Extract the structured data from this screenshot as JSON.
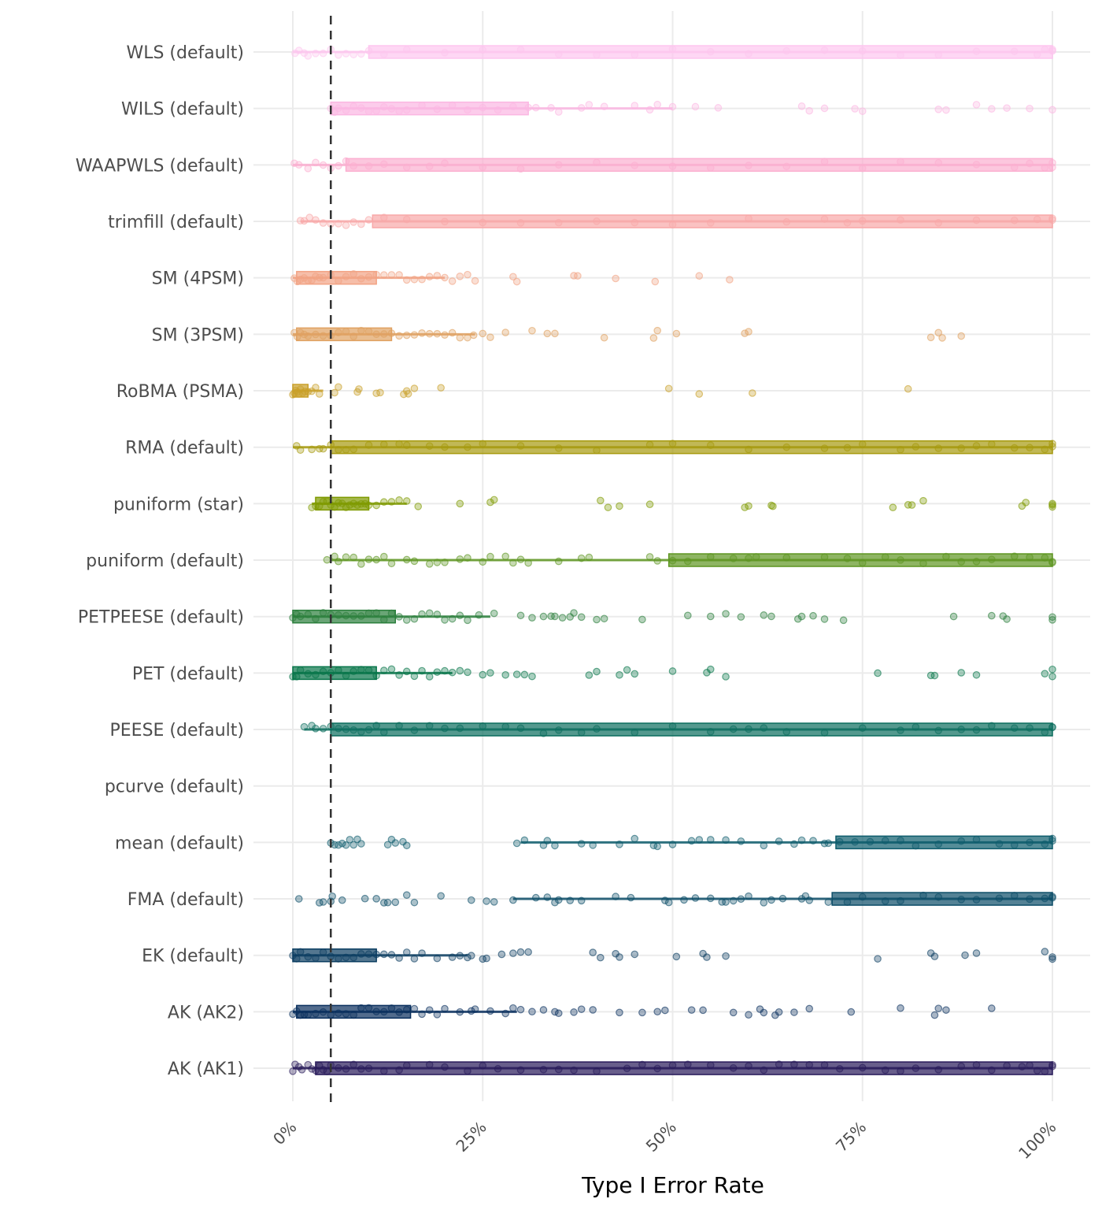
{
  "chart_data": {
    "type": "scatter",
    "subtype": "jittered-points-with-boxplot",
    "title": "",
    "xlabel": "Type I Error Rate",
    "ylabel": "",
    "xlim": [
      0,
      100
    ],
    "x_ticks": [
      0,
      25,
      50,
      75,
      100
    ],
    "x_tick_labels": [
      "0%",
      "25%",
      "50%",
      "75%",
      "100%"
    ],
    "grid": true,
    "legend": "none",
    "reference_line": {
      "x": 5,
      "style": "dashed",
      "color": "#333333"
    },
    "series": [
      {
        "name": "WLS (default)",
        "color": "#FDC6EF",
        "box": {
          "q1": 10,
          "median": 100,
          "q3": 100
        },
        "whisker": [
          0,
          100
        ],
        "points": [
          0.3,
          0.8,
          1.5,
          2,
          3,
          4,
          5,
          6,
          7,
          8,
          9,
          10,
          12,
          15,
          20,
          25,
          30,
          35,
          40,
          45,
          50,
          55,
          60,
          65,
          70,
          75,
          80,
          85,
          90,
          95,
          98,
          99,
          100,
          100,
          100
        ]
      },
      {
        "name": "WILS (default)",
        "color": "#FBB7E2",
        "box": {
          "q1": 5,
          "median": 15,
          "q3": 31
        },
        "whisker": [
          5,
          50
        ],
        "points": [
          5,
          5.5,
          6,
          7,
          8,
          9,
          10,
          11,
          12,
          13,
          14,
          15,
          17,
          19,
          21,
          23,
          25,
          27,
          29,
          31,
          32,
          34,
          35,
          38,
          39,
          41,
          45,
          47,
          48,
          50,
          53,
          56,
          67,
          68,
          70,
          74,
          75,
          85,
          86,
          90,
          92,
          94,
          97,
          100
        ]
      },
      {
        "name": "WAAPWLS (default)",
        "color": "#FBAFD0",
        "box": {
          "q1": 7,
          "median": 60,
          "q3": 100
        },
        "whisker": [
          0,
          100
        ],
        "points": [
          0.2,
          0.8,
          2,
          3,
          4,
          5,
          6,
          7,
          8,
          10,
          12,
          15,
          18,
          20,
          25,
          30,
          35,
          40,
          45,
          50,
          55,
          60,
          65,
          70,
          75,
          80,
          85,
          90,
          95,
          97,
          99,
          100,
          100
        ]
      },
      {
        "name": "trimfill (default)",
        "color": "#F8A8A8",
        "box": {
          "q1": 10.5,
          "median": 100,
          "q3": 100
        },
        "whisker": [
          1,
          100
        ],
        "points": [
          1,
          1.5,
          2.2,
          3,
          4,
          5,
          6,
          7,
          8,
          9,
          10,
          12,
          15,
          20,
          25,
          30,
          35,
          40,
          45,
          50,
          55,
          60,
          65,
          70,
          73,
          75,
          80,
          85,
          90,
          95,
          98,
          100,
          100
        ]
      },
      {
        "name": "SM (4PSM)",
        "color": "#F2A384",
        "box": {
          "q1": 0.5,
          "median": 5,
          "q3": 11
        },
        "whisker": [
          0,
          20
        ],
        "points": [
          0.2,
          0.6,
          1,
          1.5,
          2,
          2.5,
          3,
          3.5,
          4,
          5,
          6,
          7,
          8,
          9,
          10,
          11,
          12,
          13,
          14,
          15,
          16,
          17,
          18,
          19,
          20,
          21,
          22,
          23,
          24,
          29,
          29.5,
          37,
          37.5,
          42.5,
          47.7,
          53.5,
          57.5
        ]
      },
      {
        "name": "SM (3PSM)",
        "color": "#E0A161",
        "box": {
          "q1": 0.5,
          "median": 5,
          "q3": 13
        },
        "whisker": [
          0,
          24
        ],
        "points": [
          0.2,
          0.6,
          1,
          1.5,
          2,
          3,
          4,
          5,
          6,
          7,
          8,
          9,
          10,
          11,
          12,
          13,
          14,
          15,
          16,
          17,
          18,
          19,
          20,
          21,
          22,
          23,
          23.8,
          25,
          26,
          28,
          31.5,
          33.5,
          34.5,
          41,
          47.5,
          48,
          50.5,
          59.5,
          60,
          84,
          85,
          85.5,
          88
        ]
      },
      {
        "name": "RoBMA (PSMA)",
        "color": "#C9A02A",
        "box": {
          "q1": 0,
          "median": 0.5,
          "q3": 2
        },
        "whisker": [
          0,
          4
        ],
        "points": [
          0,
          0.2,
          0.4,
          0.6,
          0.8,
          1,
          1.3,
          1.6,
          2,
          2.5,
          3,
          3.5,
          5.5,
          6,
          8.5,
          8.7,
          11,
          11.5,
          14.6,
          15,
          15.2,
          16,
          19.5,
          49.5,
          53.5,
          60.5,
          81
        ]
      },
      {
        "name": "RMA (default)",
        "color": "#A69A0E",
        "box": {
          "q1": 5,
          "median": 60,
          "q3": 100
        },
        "whisker": [
          0,
          100
        ],
        "points": [
          0.5,
          1,
          2.5,
          3.5,
          4,
          5,
          6,
          7,
          8,
          10,
          12,
          14,
          15,
          18,
          20,
          23,
          25,
          30,
          35,
          40,
          47,
          50,
          55,
          60,
          65,
          70,
          73,
          75,
          80,
          82,
          85,
          88,
          90,
          92,
          95,
          97,
          99,
          100,
          100
        ]
      },
      {
        "name": "puniform (star)",
        "color": "#7F9A00",
        "box": {
          "q1": 3,
          "median": 5,
          "q3": 10
        },
        "whisker": [
          2.5,
          15
        ],
        "points": [
          2.5,
          3,
          3.5,
          4,
          4.5,
          5,
          5.5,
          6,
          6.5,
          7,
          7.5,
          8,
          8.5,
          9,
          9.5,
          10,
          11,
          12,
          13,
          14,
          15,
          16.5,
          22,
          26,
          26.5,
          40.5,
          41.5,
          43,
          47,
          59.5,
          60,
          63,
          63.2,
          79,
          81,
          81.5,
          83,
          96,
          96.5,
          100,
          100,
          100
        ]
      },
      {
        "name": "puniform (default)",
        "color": "#5E9621",
        "box": {
          "q1": 49.5,
          "median": 85,
          "q3": 100
        },
        "whisker": [
          5,
          100
        ],
        "points": [
          4.5,
          5.5,
          6,
          7,
          8,
          9,
          10,
          11,
          12,
          13,
          15,
          16,
          18,
          19,
          20,
          22,
          23,
          25,
          26,
          28,
          29,
          30,
          31,
          35,
          38,
          39,
          47,
          48,
          50,
          52,
          55,
          58,
          60,
          61,
          65,
          70,
          73,
          75,
          78,
          80,
          83,
          86,
          88,
          90,
          92,
          95,
          97,
          99,
          100,
          100
        ]
      },
      {
        "name": "PETPEESE (default)",
        "color": "#2B7F3C",
        "box": {
          "q1": 0,
          "median": 3,
          "q3": 13.5
        },
        "whisker": [
          0,
          26
        ],
        "points": [
          0,
          0.5,
          1,
          2,
          3,
          4,
          5,
          6,
          7,
          8,
          9,
          10,
          11,
          12,
          13,
          14,
          15,
          16,
          17,
          18,
          19,
          20,
          21,
          22,
          23,
          24.5,
          26.5,
          30,
          31.5,
          33,
          34,
          34.5,
          35.5,
          36.5,
          37,
          38,
          40,
          41,
          46,
          52,
          55,
          57,
          59,
          62,
          63,
          66.5,
          67,
          68.5,
          70,
          72.5,
          87,
          92,
          93.5,
          94,
          100,
          100
        ]
      },
      {
        "name": "PET (default)",
        "color": "#077549",
        "box": {
          "q1": 0,
          "median": 2,
          "q3": 11
        },
        "whisker": [
          0,
          21
        ],
        "points": [
          0,
          0.5,
          1,
          2,
          3,
          4,
          5,
          6,
          7,
          8,
          9,
          10,
          11,
          12,
          13,
          14,
          15,
          16,
          17,
          18,
          19,
          20,
          21,
          22,
          23,
          25,
          26,
          28,
          29.5,
          30.5,
          31.5,
          39,
          40,
          43,
          44,
          45,
          50,
          54.5,
          55,
          57,
          77,
          84,
          84.5,
          88,
          90,
          99,
          100,
          100
        ]
      },
      {
        "name": "PEESE (default)",
        "color": "#0C6E5E",
        "box": {
          "q1": 5,
          "median": 60,
          "q3": 100
        },
        "whisker": [
          1.5,
          100
        ],
        "points": [
          1.5,
          2.5,
          3,
          4,
          5,
          6,
          7,
          8,
          9,
          10,
          11,
          12,
          14,
          16,
          18,
          20,
          22,
          25,
          28,
          30,
          33,
          35,
          38,
          40,
          45,
          50,
          55,
          58,
          60,
          62,
          65,
          70,
          75,
          80,
          82,
          85,
          88,
          90,
          92,
          95,
          97,
          99,
          100,
          100
        ]
      },
      {
        "name": "pcurve (default)",
        "color": "#0E6A70",
        "box": null,
        "whisker": null,
        "points": []
      },
      {
        "name": "mean (default)",
        "color": "#0D5C6C",
        "box": {
          "q1": 71.5,
          "median": 90,
          "q3": 100
        },
        "whisker": [
          30,
          100
        ],
        "points": [
          5,
          5.5,
          6,
          6.5,
          7,
          7.5,
          8,
          8.5,
          9,
          12.5,
          13,
          13.5,
          14.5,
          15,
          29.5,
          30.5,
          33,
          33.5,
          34.5,
          38,
          39.5,
          43,
          45,
          47.5,
          48,
          50,
          52.5,
          53.5,
          55,
          57,
          59,
          62,
          64,
          66,
          67,
          68.5,
          70,
          70.5,
          72,
          74,
          76,
          78,
          80,
          82,
          85,
          88,
          90,
          93,
          95,
          97,
          99,
          100,
          100
        ]
      },
      {
        "name": "FMA (default)",
        "color": "#0C4D68",
        "box": {
          "q1": 71,
          "median": 90,
          "q3": 100
        },
        "whisker": [
          29,
          100
        ],
        "points": [
          0.8,
          3.5,
          4,
          5,
          5.2,
          6.5,
          9.5,
          11,
          12,
          12.5,
          13.5,
          15,
          16,
          19.5,
          23.5,
          25.5,
          26.5,
          29,
          32,
          33.5,
          34.5,
          35,
          36.5,
          38,
          42.5,
          44.5,
          49,
          49.5,
          51.5,
          53,
          55,
          56.5,
          57,
          58,
          59,
          60,
          62,
          63,
          64.5,
          67,
          67.5,
          68,
          70.5,
          73,
          75,
          78,
          80,
          83,
          85,
          88,
          90,
          93,
          95,
          97,
          99,
          100,
          100
        ]
      },
      {
        "name": "EK (default)",
        "color": "#0B3D61",
        "box": {
          "q1": 0,
          "median": 2,
          "q3": 11
        },
        "whisker": [
          0,
          23
        ],
        "points": [
          0,
          0.5,
          1,
          2,
          3,
          4,
          5,
          6,
          7,
          8,
          9,
          10,
          11,
          12,
          13,
          14,
          15,
          16,
          17,
          19,
          21,
          22,
          23,
          23.5,
          25,
          25.5,
          27.5,
          29,
          30,
          31,
          39.5,
          40.5,
          42.5,
          43,
          45,
          50.5,
          54,
          54.5,
          57,
          77,
          84,
          84.5,
          88.5,
          90,
          99,
          100,
          100
        ]
      },
      {
        "name": "AK (AK2)",
        "color": "#082E5D",
        "box": {
          "q1": 0.5,
          "median": 5,
          "q3": 15.5
        },
        "whisker": [
          0,
          29.5
        ],
        "points": [
          0,
          0.5,
          1,
          1.5,
          2,
          3,
          4,
          5,
          6,
          7,
          8,
          9,
          10,
          11,
          12,
          13,
          14,
          15,
          16,
          17,
          18,
          19,
          20,
          22,
          23.5,
          24,
          26,
          28,
          29,
          30,
          31.5,
          33,
          34.5,
          35,
          37,
          38,
          39.5,
          43,
          46,
          48,
          49,
          52.5,
          54,
          58,
          60,
          61.5,
          62,
          63.5,
          64,
          66,
          68,
          73.5,
          80,
          84.5,
          85,
          86,
          92
        ]
      },
      {
        "name": "AK (AK1)",
        "color": "#281A5A",
        "box": {
          "q1": 3,
          "median": 50,
          "q3": 100
        },
        "whisker": [
          0,
          100
        ],
        "points": [
          0,
          0.3,
          0.8,
          1.2,
          2,
          2.5,
          3,
          3.5,
          4,
          4.5,
          5,
          6,
          7,
          8,
          9,
          10,
          12,
          14,
          15,
          18,
          20,
          23,
          25,
          27,
          30,
          33,
          35,
          37,
          40,
          44,
          46,
          48,
          50,
          52,
          55,
          58,
          60,
          62,
          64,
          66,
          68,
          70,
          72,
          75,
          78,
          80,
          82,
          85,
          88,
          90,
          92,
          94,
          96,
          97,
          98,
          99,
          100,
          100
        ]
      }
    ]
  }
}
